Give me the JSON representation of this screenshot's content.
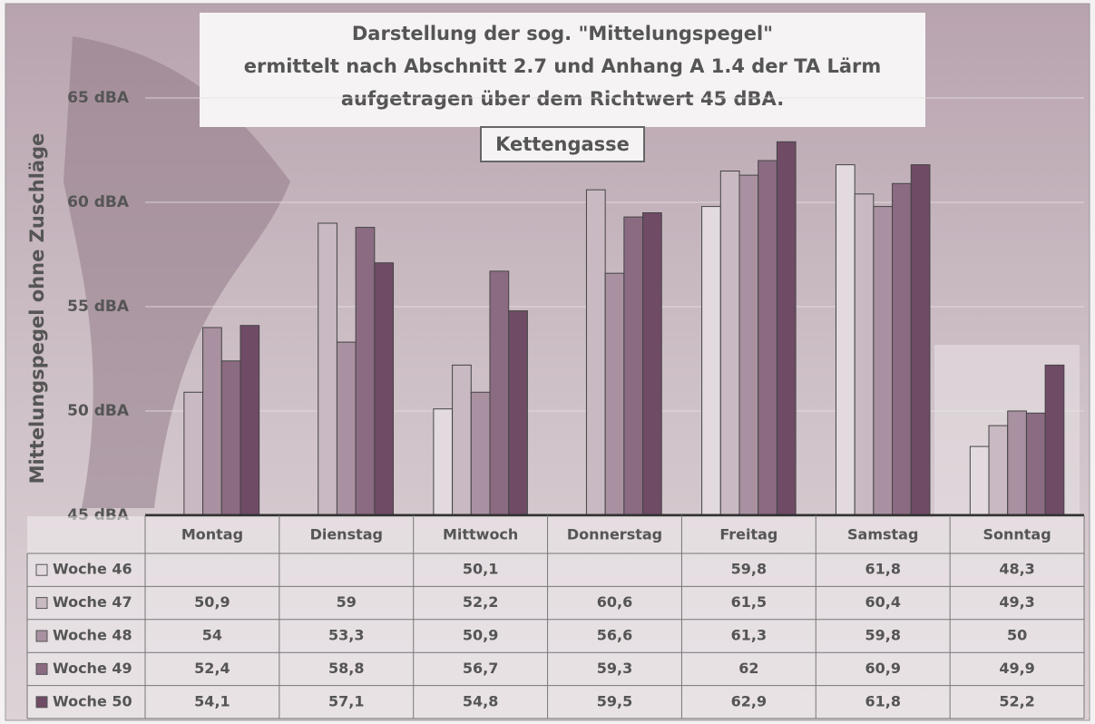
{
  "chart_data": {
    "type": "bar",
    "title": [
      "Darstellung der sog. \"Mittelungspegel\"",
      "ermittelt nach Abschnitt 2.7 und Anhang A 1.4 der TA Lärm",
      "aufgetragen über dem Richtwert 45 dBA."
    ],
    "subtitle": "Kettengasse",
    "y_label": "Mittelungspegel ohne Zuschläge",
    "categories": [
      "Montag",
      "Dienstag",
      "Mittwoch",
      "Donnerstag",
      "Freitag",
      "Samstag",
      "Sonntag"
    ],
    "series": [
      {
        "name": "Woche 46",
        "color": "#e2dadf",
        "values": [
          null,
          null,
          50.1,
          null,
          59.8,
          61.8,
          48.3
        ],
        "value_labels": [
          null,
          null,
          "50,1",
          null,
          "59,8",
          "61,8",
          "48,3"
        ]
      },
      {
        "name": "Woche 47",
        "color": "#c9b9c2",
        "values": [
          50.9,
          59,
          52.2,
          60.6,
          61.5,
          60.4,
          49.3
        ],
        "value_labels": [
          "50,9",
          "59",
          "52,2",
          "60,6",
          "61,5",
          "60,4",
          "49,3"
        ]
      },
      {
        "name": "Woche 48",
        "color": "#a991a1",
        "values": [
          54,
          53.3,
          50.9,
          56.6,
          61.3,
          59.8,
          50
        ],
        "value_labels": [
          "54",
          "53,3",
          "50,9",
          "56,6",
          "61,3",
          "59,8",
          "50"
        ]
      },
      {
        "name": "Woche 49",
        "color": "#8b6b82",
        "values": [
          52.4,
          58.8,
          56.7,
          59.3,
          62,
          60.9,
          49.9
        ],
        "value_labels": [
          "52,4",
          "58,8",
          "56,7",
          "59,3",
          "62",
          "60,9",
          "49,9"
        ]
      },
      {
        "name": "Woche 50",
        "color": "#6f4b66",
        "values": [
          54.1,
          57.1,
          54.8,
          59.5,
          62.9,
          61.8,
          52.2
        ],
        "value_labels": [
          "54,1",
          "57,1",
          "54,8",
          "59,5",
          "62,9",
          "61,8",
          "52,2"
        ]
      }
    ],
    "ylim": [
      45,
      65
    ],
    "yticks": [
      {
        "value": 45,
        "label": "45 dBA"
      },
      {
        "value": 50,
        "label": "50 dBA"
      },
      {
        "value": 55,
        "label": "55 dBA"
      },
      {
        "value": 60,
        "label": "60 dBA"
      },
      {
        "value": 65,
        "label": "65 dBA"
      }
    ],
    "grid": true
  }
}
